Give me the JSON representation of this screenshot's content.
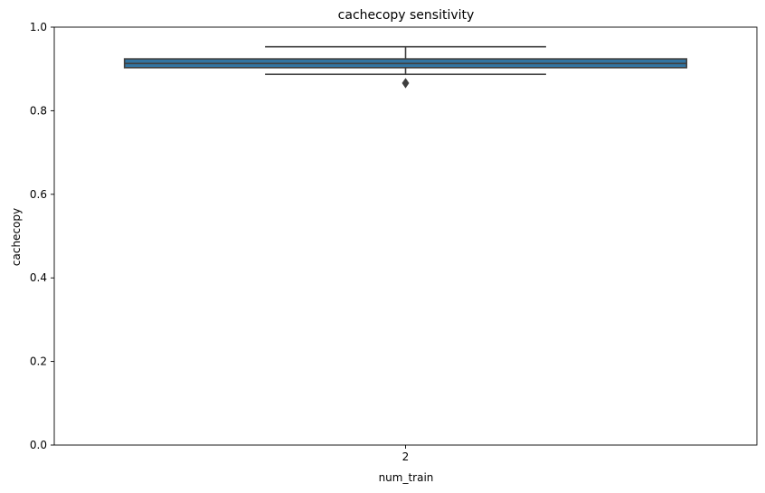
{
  "chart_data": {
    "type": "box",
    "title": "cachecopy sensitivity",
    "xlabel": "num_train",
    "ylabel": "cachecopy",
    "categories": [
      "2"
    ],
    "ylim": [
      0.0,
      1.0
    ],
    "yticks": [
      0.0,
      0.2,
      0.4,
      0.6,
      0.8,
      1.0
    ],
    "ytick_labels": [
      "0.0",
      "0.2",
      "0.4",
      "0.6",
      "0.8",
      "1.0"
    ],
    "grid": false,
    "series": [
      {
        "category": "2",
        "whisker_low": 0.887,
        "q1": 0.903,
        "median": 0.913,
        "q3": 0.924,
        "whisker_high": 0.953,
        "outliers": [
          0.866
        ]
      }
    ],
    "colors": {
      "box_fill": "#3274a1",
      "lines": "#3f3f3f",
      "axes": "#000000"
    }
  }
}
